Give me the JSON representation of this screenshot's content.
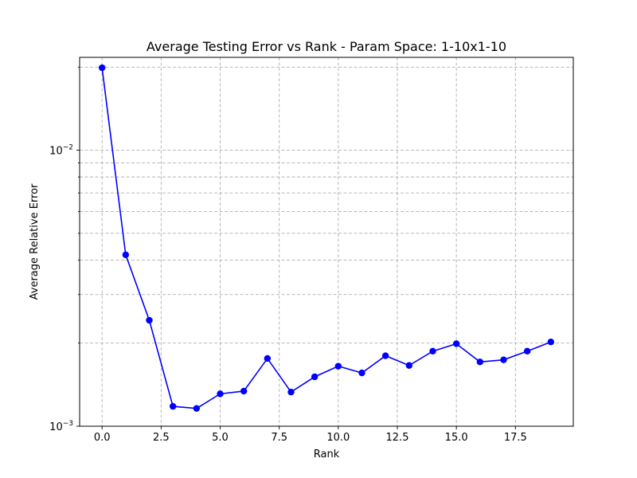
{
  "chart_data": {
    "type": "line",
    "title": "Average Testing Error vs Rank - Param Space: 1-10x1-10",
    "xlabel": "Rank",
    "ylabel": "Average Relative Error",
    "xlim": [
      -0.95,
      19.95
    ],
    "ylim": [
      0.001,
      0.0217
    ],
    "yscale": "log",
    "grid": true,
    "xticks": [
      0,
      2.5,
      5,
      7.5,
      10,
      12.5,
      15,
      17.5
    ],
    "xtick_labels": [
      "0.0",
      "2.5",
      "5.0",
      "7.5",
      "10.0",
      "12.5",
      "15.0",
      "17.5"
    ],
    "yticks_major": [
      0.001,
      0.01
    ],
    "ytick_labels_major": [
      {
        "base": "10",
        "exp": "−3"
      },
      {
        "base": "10",
        "exp": "−2"
      }
    ],
    "yticks_minor": [
      0.002,
      0.003,
      0.004,
      0.005,
      0.006,
      0.007,
      0.008,
      0.009,
      0.02
    ],
    "series": [
      {
        "color": "#0000ff",
        "marker": "circle",
        "x": [
          0,
          1,
          2,
          3,
          4,
          5,
          6,
          7,
          8,
          9,
          10,
          11,
          12,
          13,
          14,
          15,
          16,
          17,
          18,
          19
        ],
        "y": [
          0.0199,
          0.00418,
          0.00242,
          0.00118,
          0.00116,
          0.00131,
          0.00134,
          0.00176,
          0.00133,
          0.00151,
          0.00165,
          0.00156,
          0.0018,
          0.00166,
          0.00187,
          0.00199,
          0.00171,
          0.00174,
          0.00187,
          0.00202
        ]
      }
    ]
  }
}
